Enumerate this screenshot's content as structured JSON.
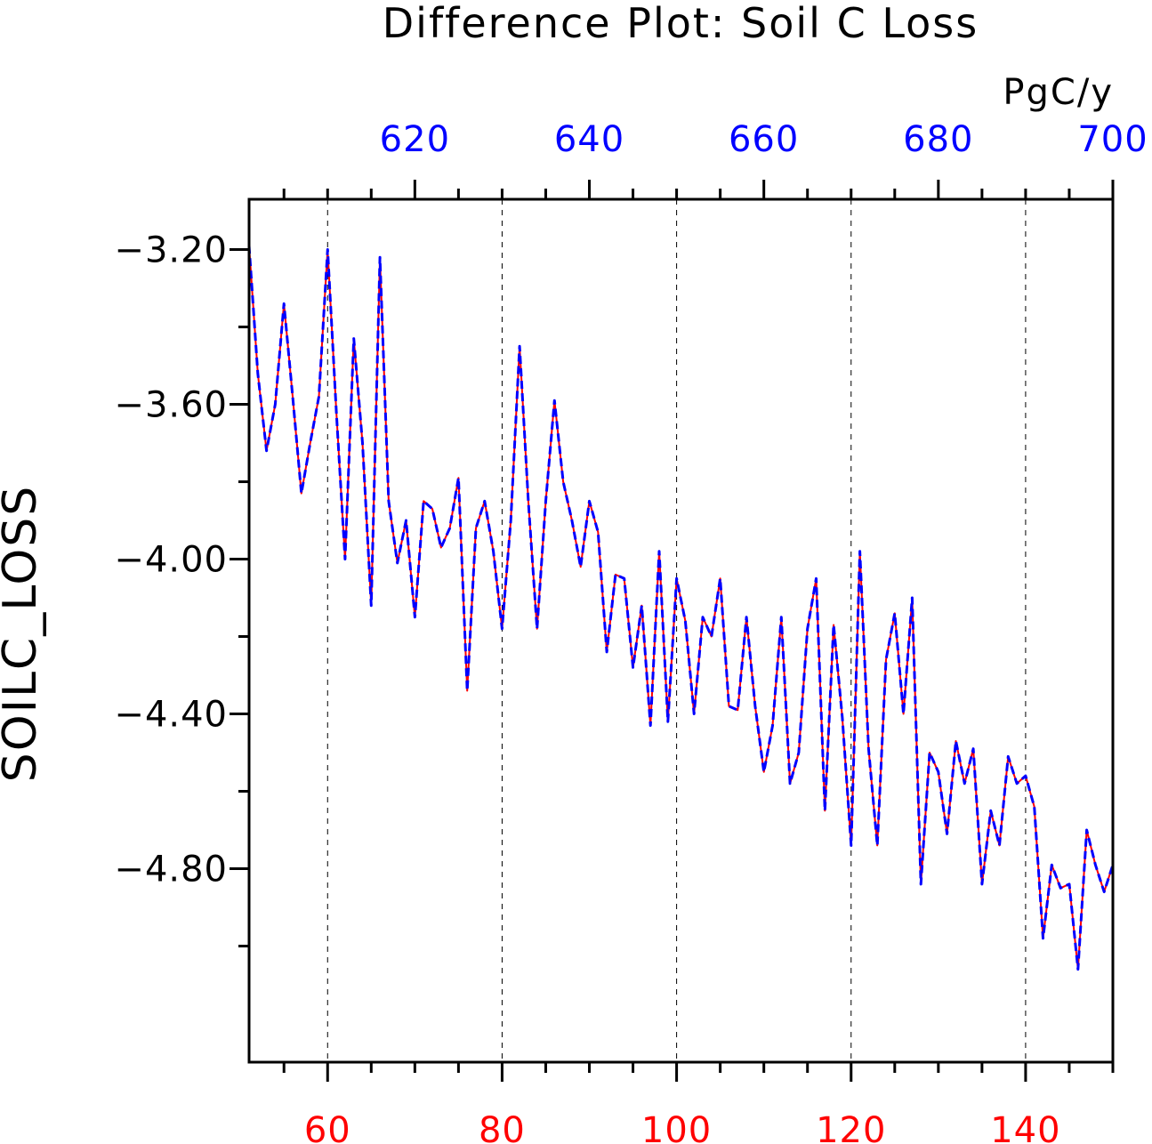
{
  "chart_data": {
    "type": "line",
    "title": "Difference Plot: Soil C Loss",
    "units": "PgC/y",
    "ylabel": "SOILC_LOSS",
    "xlabel": "",
    "xlim": [
      51,
      150
    ],
    "ylim": [
      -5.3,
      -3.07
    ],
    "x_ticks": [
      60,
      80,
      100,
      120,
      140
    ],
    "x_tick_labels": [
      "60",
      "80",
      "100",
      "120",
      "140"
    ],
    "x_tick_color": "#ff0000",
    "top_x_ticks": [
      620,
      640,
      660,
      680,
      700
    ],
    "top_x_tick_labels": [
      "620",
      "640",
      "660",
      "680",
      "700"
    ],
    "top_x_offset": 550,
    "top_x_tick_color": "#0000ff",
    "y_ticks": [
      -3.2,
      -3.6,
      -4.0,
      -4.4,
      -4.8
    ],
    "y_tick_labels": [
      "−3.20",
      "−3.60",
      "−4.00",
      "−4.40",
      "−4.80"
    ],
    "grid": "vertical dashed at bottom major ticks",
    "series": [
      {
        "color": "#ff0000",
        "style": "solid",
        "x_start": 51,
        "x_step": 1,
        "values": [
          -3.19,
          -3.52,
          -3.72,
          -3.6,
          -3.34,
          -3.58,
          -3.83,
          -3.7,
          -3.58,
          -3.2,
          -3.62,
          -4.0,
          -3.43,
          -3.7,
          -4.12,
          -3.22,
          -3.85,
          -4.01,
          -3.9,
          -4.15,
          -3.85,
          -3.87,
          -3.97,
          -3.92,
          -3.79,
          -4.34,
          -3.92,
          -3.85,
          -3.98,
          -4.18,
          -3.9,
          -3.45,
          -3.85,
          -4.18,
          -3.85,
          -3.59,
          -3.8,
          -3.9,
          -4.02,
          -3.85,
          -3.93,
          -4.24,
          -4.04,
          -4.05,
          -4.28,
          -4.12,
          -4.43,
          -3.98,
          -4.42,
          -4.05,
          -4.16,
          -4.4,
          -4.15,
          -4.2,
          -4.05,
          -4.38,
          -4.39,
          -4.15,
          -4.38,
          -4.55,
          -4.43,
          -4.15,
          -4.58,
          -4.5,
          -4.18,
          -4.05,
          -4.65,
          -4.17,
          -4.41,
          -4.74,
          -3.98,
          -4.49,
          -4.74,
          -4.26,
          -4.14,
          -4.4,
          -4.1,
          -4.84,
          -4.5,
          -4.55,
          -4.71,
          -4.47,
          -4.58,
          -4.49,
          -4.84,
          -4.65,
          -4.74,
          -4.51,
          -4.58,
          -4.56,
          -4.64,
          -4.98,
          -4.79,
          -4.85,
          -4.84,
          -5.06,
          -4.7,
          -4.79,
          -4.86,
          -4.79
        ]
      },
      {
        "color": "#0000ff",
        "style": "dashed",
        "x_start": 51,
        "x_step": 1,
        "values": [
          -3.19,
          -3.52,
          -3.72,
          -3.6,
          -3.34,
          -3.58,
          -3.83,
          -3.7,
          -3.58,
          -3.2,
          -3.62,
          -4.0,
          -3.43,
          -3.7,
          -4.12,
          -3.22,
          -3.85,
          -4.01,
          -3.9,
          -4.15,
          -3.85,
          -3.87,
          -3.97,
          -3.92,
          -3.79,
          -4.34,
          -3.92,
          -3.85,
          -3.98,
          -4.18,
          -3.9,
          -3.45,
          -3.85,
          -4.18,
          -3.85,
          -3.59,
          -3.8,
          -3.9,
          -4.02,
          -3.85,
          -3.93,
          -4.24,
          -4.04,
          -4.05,
          -4.28,
          -4.12,
          -4.43,
          -3.98,
          -4.42,
          -4.05,
          -4.16,
          -4.4,
          -4.15,
          -4.2,
          -4.05,
          -4.38,
          -4.39,
          -4.15,
          -4.38,
          -4.55,
          -4.43,
          -4.15,
          -4.58,
          -4.5,
          -4.18,
          -4.05,
          -4.65,
          -4.17,
          -4.41,
          -4.74,
          -3.98,
          -4.49,
          -4.74,
          -4.26,
          -4.14,
          -4.4,
          -4.1,
          -4.84,
          -4.5,
          -4.55,
          -4.71,
          -4.47,
          -4.58,
          -4.49,
          -4.84,
          -4.65,
          -4.74,
          -4.51,
          -4.58,
          -4.56,
          -4.64,
          -4.98,
          -4.79,
          -4.85,
          -4.84,
          -5.06,
          -4.7,
          -4.79,
          -4.86,
          -4.79
        ]
      }
    ]
  }
}
